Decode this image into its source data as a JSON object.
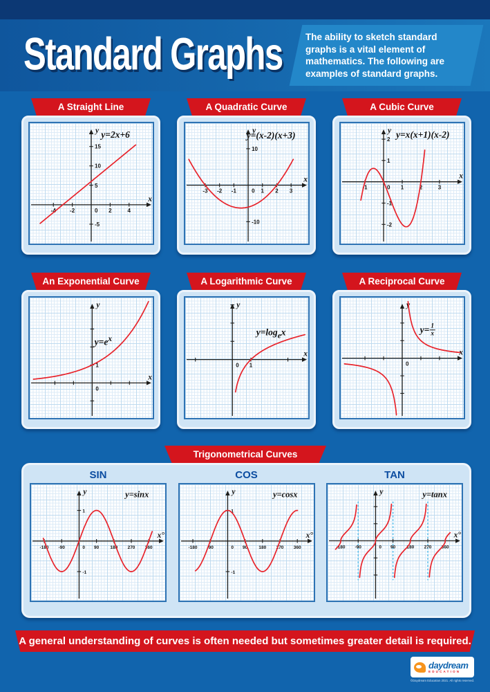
{
  "poster": {
    "title": "Standard Graphs",
    "intro": "The ability to sketch standard graphs is a vital element of mathematics. The following are examples of standard graphs.",
    "footer": "A general understanding of curves is often needed but sometimes greater detail is required.",
    "brand": {
      "name": "daydream",
      "tagline": "EDUCATION",
      "copyright": "©Daydream Education 2021. All rights reserved."
    }
  },
  "sections": {
    "trig": "Trigonometrical Curves"
  },
  "style": {
    "axis_color": "#1d1d1b",
    "curve_color": "#e8232b",
    "asymptote_color": "#45b7e9",
    "banner_red": "#d4151d",
    "background_blue": "#1164ad",
    "panel_blue": "#cfe4f5",
    "trig_label_blue": "#0c4da1"
  },
  "chart_data": [
    {
      "id": "straight-line",
      "header": "A Straight Line",
      "type": "line",
      "equation": "y=2x+6",
      "x_label": "x",
      "y_label": "y",
      "xlim": [
        -6.5,
        6.5
      ],
      "ylim": [
        -10,
        21
      ],
      "x_ticks": [
        {
          "v": -4,
          "label": "-4"
        },
        {
          "v": -2,
          "label": "-2"
        },
        {
          "v": 2,
          "label": "2"
        },
        {
          "v": 4,
          "label": "4"
        }
      ],
      "y_ticks": [
        {
          "v": -5,
          "label": "-5"
        },
        {
          "v": 5,
          "label": "5"
        },
        {
          "v": 10,
          "label": "10"
        },
        {
          "v": 15,
          "label": "15"
        }
      ],
      "origin_label": "0",
      "curve": {
        "kind": "poly",
        "coeffs": [
          6,
          2
        ],
        "domain": [
          -5.4,
          4.7
        ]
      },
      "eq_pos": [
        0.7,
        0.1
      ]
    },
    {
      "id": "quadratic",
      "header": "A Quadratic Curve",
      "type": "line",
      "equation": "y=(x-2)(x+3)",
      "x_label": "x",
      "y_label": "y",
      "xlim": [
        -4.4,
        4.2
      ],
      "ylim": [
        -16,
        17
      ],
      "x_ticks": [
        {
          "v": -3,
          "label": "-3"
        },
        {
          "v": -2,
          "label": "-2"
        },
        {
          "v": -1,
          "label": "-1"
        },
        {
          "v": 1,
          "label": "1"
        },
        {
          "v": 2,
          "label": "2"
        },
        {
          "v": 3,
          "label": "3"
        }
      ],
      "y_ticks": [
        {
          "v": 10,
          "label": "10"
        },
        {
          "v": -10,
          "label": "-10"
        }
      ],
      "origin_label": "0",
      "curve": {
        "kind": "poly",
        "coeffs": [
          -6,
          1,
          1
        ],
        "domain": [
          -4.15,
          3.15
        ]
      },
      "eq_pos": [
        0.7,
        0.105
      ]
    },
    {
      "id": "cubic",
      "header": "A Cubic Curve",
      "type": "line",
      "equation": "y=x(x+1)(x-2)",
      "x_label": "x",
      "y_label": "y",
      "xlim": [
        -2.3,
        4.3
      ],
      "ylim": [
        -2.9,
        2.75
      ],
      "x_ticks": [
        {
          "v": -1,
          "label": "-1"
        },
        {
          "v": 1,
          "label": "1"
        },
        {
          "v": 2,
          "label": "2"
        },
        {
          "v": 3,
          "label": "3"
        }
      ],
      "y_ticks": [
        {
          "v": 2,
          "label": "2"
        },
        {
          "v": 1,
          "label": "1"
        },
        {
          "v": -1,
          "label": "-1"
        },
        {
          "v": -2,
          "label": "-2"
        }
      ],
      "origin_label": "0",
      "curve": {
        "kind": "poly",
        "coeffs": [
          0,
          -2,
          -1,
          1
        ],
        "domain": [
          -1.22,
          2.21
        ]
      },
      "eq_pos": [
        0.67,
        0.1
      ]
    },
    {
      "id": "exponential",
      "header": "An Exponential Curve",
      "type": "line",
      "equation": "y=e^(x)",
      "x_label": "x",
      "y_label": "y",
      "xlim": [
        -3.35,
        3.25
      ],
      "ylim": [
        -1.95,
        4.75
      ],
      "x_ticks": [
        {
          "v": -2,
          "label": ""
        },
        {
          "v": -1,
          "label": ""
        },
        {
          "v": 1,
          "label": ""
        },
        {
          "v": 2,
          "label": ""
        }
      ],
      "y_ticks": [
        {
          "v": 1,
          "label": "1"
        },
        {
          "v": 2,
          "label": ""
        },
        {
          "v": 3,
          "label": ""
        },
        {
          "v": -1,
          "label": ""
        }
      ],
      "origin_label": "0",
      "curve": {
        "kind": "exp",
        "s": 0.5,
        "domain": [
          -3.15,
          3.02
        ]
      },
      "eq_pos": [
        0.6,
        0.36
      ]
    },
    {
      "id": "logarithmic",
      "header": "A Logarithmic Curve",
      "type": "line",
      "equation": "y=log_(e)x",
      "x_label": "x",
      "y_label": "y",
      "xlim": [
        -2.55,
        4.1
      ],
      "ylim": [
        -3.2,
        3.4
      ],
      "x_ticks": [
        {
          "v": -2,
          "label": ""
        },
        {
          "v": 1,
          "label": "1"
        },
        {
          "v": 3,
          "label": ""
        }
      ],
      "y_ticks": [
        {
          "v": 1,
          "label": ""
        },
        {
          "v": 2,
          "label": ""
        },
        {
          "v": 3,
          "label": ""
        }
      ],
      "origin_label": "0",
      "curve": {
        "kind": "log",
        "domain": [
          0.17,
          3.92
        ]
      },
      "eq_pos": [
        0.7,
        0.3
      ]
    },
    {
      "id": "reciprocal",
      "header": "A Reciprocal Curve",
      "type": "line",
      "equation": "y=frac(1,x)",
      "x_label": "x",
      "y_label": "y",
      "xlim": [
        -3.3,
        3.3
      ],
      "ylim": [
        -3.4,
        3.45
      ],
      "x_ticks": [
        {
          "v": -2,
          "label": ""
        },
        {
          "v": -1,
          "label": ""
        },
        {
          "v": 1,
          "label": ""
        },
        {
          "v": 2,
          "label": ""
        }
      ],
      "y_ticks": [
        {
          "v": -2,
          "label": ""
        },
        {
          "v": -1,
          "label": ""
        },
        {
          "v": 1,
          "label": ""
        },
        {
          "v": 2,
          "label": ""
        }
      ],
      "origin_label": "0",
      "curve": {
        "kind": "recip",
        "segments": [
          [
            -3.1,
            -0.31
          ],
          [
            0.31,
            3.1
          ]
        ]
      },
      "eq_pos": [
        0.71,
        0.27
      ]
    },
    {
      "id": "sin",
      "header": "SIN",
      "type": "line",
      "equation": "y=sinx",
      "x_label": "x°",
      "y_label": "y",
      "tick_size": 6.5,
      "xlim": [
        -248,
        445
      ],
      "ylim": [
        -1.95,
        1.85
      ],
      "x_ticks": [
        {
          "v": -180,
          "label": "-180"
        },
        {
          "v": -90,
          "label": "-90"
        },
        {
          "v": 90,
          "label": "90"
        },
        {
          "v": 180,
          "label": "180"
        },
        {
          "v": 270,
          "label": "270"
        },
        {
          "v": 360,
          "label": "360"
        }
      ],
      "y_ticks": [
        {
          "v": 1,
          "label": "1"
        },
        {
          "v": -1,
          "label": "-1"
        }
      ],
      "origin_label": "0",
      "curve": {
        "kind": "sin",
        "domain": [
          -185,
          378
        ]
      },
      "eq_pos": [
        0.79,
        0.09
      ]
    },
    {
      "id": "cos",
      "header": "COS",
      "type": "line",
      "equation": "y=cosx",
      "x_label": "x°",
      "y_label": "y",
      "tick_size": 6.5,
      "xlim": [
        -248,
        445
      ],
      "ylim": [
        -1.95,
        1.85
      ],
      "x_ticks": [
        {
          "v": -180,
          "label": "-180"
        },
        {
          "v": -90,
          "label": "-90"
        },
        {
          "v": 90,
          "label": "90"
        },
        {
          "v": 180,
          "label": "180"
        },
        {
          "v": 270,
          "label": "270"
        },
        {
          "v": 360,
          "label": "360"
        }
      ],
      "y_ticks": [
        {
          "v": 1,
          "label": "1"
        },
        {
          "v": -1,
          "label": "-1"
        }
      ],
      "origin_label": "0",
      "curve": {
        "kind": "cos",
        "domain": [
          -167,
          361
        ]
      },
      "eq_pos": [
        0.79,
        0.09
      ]
    },
    {
      "id": "tan",
      "header": "TAN",
      "type": "line",
      "equation": "y=tanx",
      "x_label": "x°",
      "y_label": "y",
      "tick_size": 6.5,
      "xlim": [
        -248,
        445
      ],
      "ylim": [
        -3.5,
        3.3
      ],
      "x_ticks": [
        {
          "v": -180,
          "label": "-180"
        },
        {
          "v": -90,
          "label": "-90"
        },
        {
          "v": 90,
          "label": "90"
        },
        {
          "v": 180,
          "label": "180"
        },
        {
          "v": 270,
          "label": "270"
        },
        {
          "v": 360,
          "label": "360"
        }
      ],
      "y_ticks": [
        {
          "v": 1,
          "label": ""
        },
        {
          "v": 2,
          "label": ""
        },
        {
          "v": -1,
          "label": ""
        },
        {
          "v": -2,
          "label": ""
        }
      ],
      "origin_label": "0",
      "asymptotes": [
        -90,
        90,
        270
      ],
      "asymptote_extent": 2.3,
      "curve": {
        "kind": "tan",
        "pow": 0.55,
        "amp": 0.72,
        "clip": 2.15,
        "segments": [
          [
            -207,
            -91
          ],
          [
            -89,
            89
          ],
          [
            91,
            269
          ],
          [
            271,
            385
          ]
        ]
      },
      "eq_pos": [
        0.8,
        0.09
      ]
    }
  ]
}
